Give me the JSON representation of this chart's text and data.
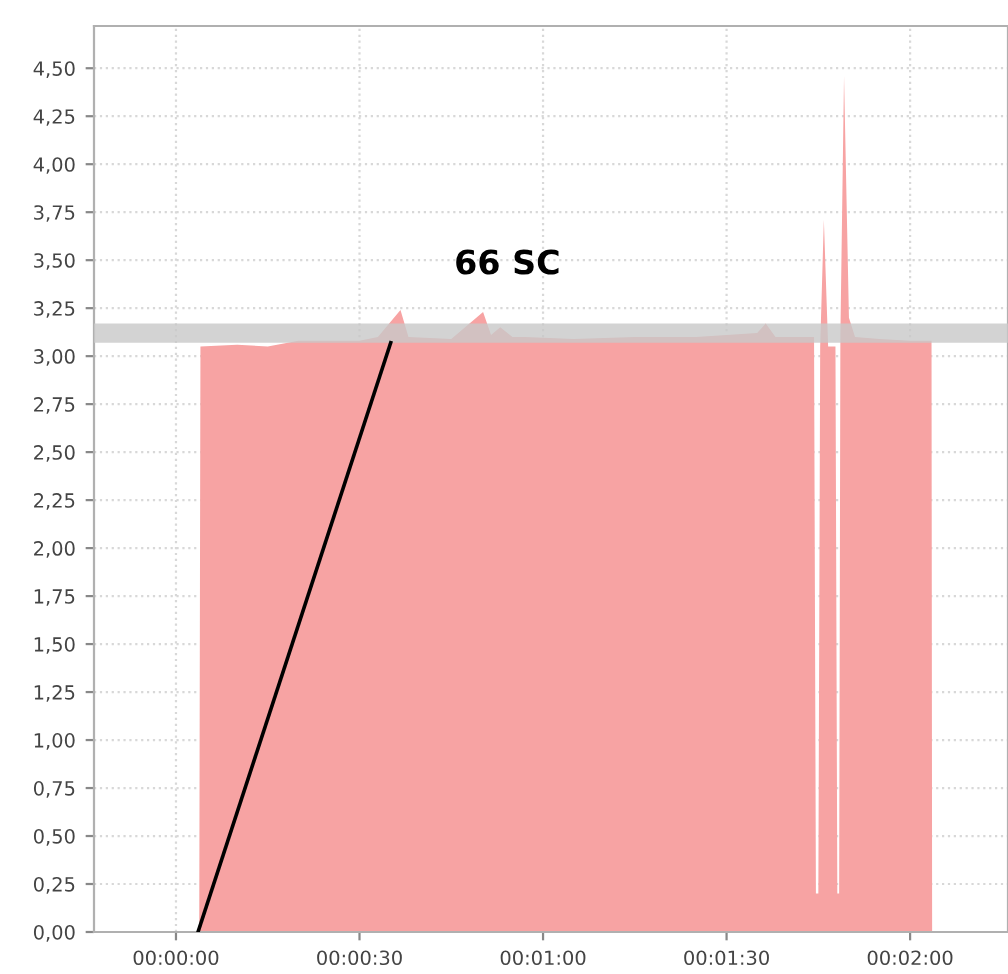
{
  "chart_data": {
    "type": "area",
    "series": [
      {
        "color": "#f7a3a3",
        "x": [
          0.001056,
          0.001111,
          0.002778,
          0.004167,
          0.005556,
          0.006944,
          0.008333,
          0.009167,
          0.010194,
          0.010556,
          0.0125,
          0.013944,
          0.014306,
          0.014722,
          0.015278,
          0.015833,
          0.018056,
          0.020833,
          0.023611,
          0.026389,
          0.026778,
          0.027222,
          0.028972,
          0.029056,
          0.029167,
          0.02925,
          0.029417,
          0.029611,
          0.029944,
          0.030028,
          0.030111,
          0.030167,
          0.030333,
          0.030556,
          0.030833,
          0.031944,
          0.033333,
          0.034306,
          0.034333
        ],
        "values": [
          0,
          3.05,
          3.06,
          3.05,
          3.08,
          3.08,
          3.08,
          3.1,
          3.24,
          3.1,
          3.09,
          3.23,
          3.11,
          3.15,
          3.1,
          3.1,
          3.09,
          3.1,
          3.1,
          3.12,
          3.17,
          3.1,
          3.1,
          0.2,
          0.2,
          3.05,
          3.71,
          3.05,
          3.05,
          0.2,
          0.2,
          3.1,
          4.46,
          3.2,
          3.1,
          3.09,
          3.08,
          3.08,
          0
        ]
      },
      {
        "type": "line",
        "color": "#000000",
        "x": [
          0.001,
          0.00975
        ],
        "values": [
          0,
          3.07
        ]
      }
    ],
    "bands": [
      {
        "axis": "y",
        "from": 3.07,
        "to": 3.17,
        "color": "#c8c8c8"
      }
    ],
    "annotations": [
      {
        "text": "66 SC",
        "x": 0.00975,
        "y": 3.07
      }
    ],
    "xlim": [
      -0.003722,
      0.037778
    ],
    "ylim": [
      0,
      4.72
    ],
    "xticks": [
      {
        "value": 0,
        "label": "00:00:00"
      },
      {
        "value": 0.008333,
        "label": "00:00:30"
      },
      {
        "value": 0.016667,
        "label": "00:01:00"
      },
      {
        "value": 0.025,
        "label": "00:01:30"
      },
      {
        "value": 0.033333,
        "label": "00:02:00"
      }
    ],
    "yticks": [
      {
        "value": 0,
        "label": "0,00"
      },
      {
        "value": 0.25,
        "label": "0,25"
      },
      {
        "value": 0.5,
        "label": "0,50"
      },
      {
        "value": 0.75,
        "label": "0,75"
      },
      {
        "value": 1,
        "label": "1,00"
      },
      {
        "value": 1.25,
        "label": "1,25"
      },
      {
        "value": 1.5,
        "label": "1,50"
      },
      {
        "value": 1.75,
        "label": "1,75"
      },
      {
        "value": 2,
        "label": "2,00"
      },
      {
        "value": 2.25,
        "label": "2,25"
      },
      {
        "value": 2.5,
        "label": "2,50"
      },
      {
        "value": 2.75,
        "label": "2,75"
      },
      {
        "value": 3,
        "label": "3,00"
      },
      {
        "value": 3.25,
        "label": "3,25"
      },
      {
        "value": 3.5,
        "label": "3,50"
      },
      {
        "value": 3.75,
        "label": "3,75"
      },
      {
        "value": 4,
        "label": "4,00"
      },
      {
        "value": 4.25,
        "label": "4,25"
      },
      {
        "value": 4.5,
        "label": "4,50"
      }
    ],
    "grid": true,
    "line_style": "solid"
  }
}
